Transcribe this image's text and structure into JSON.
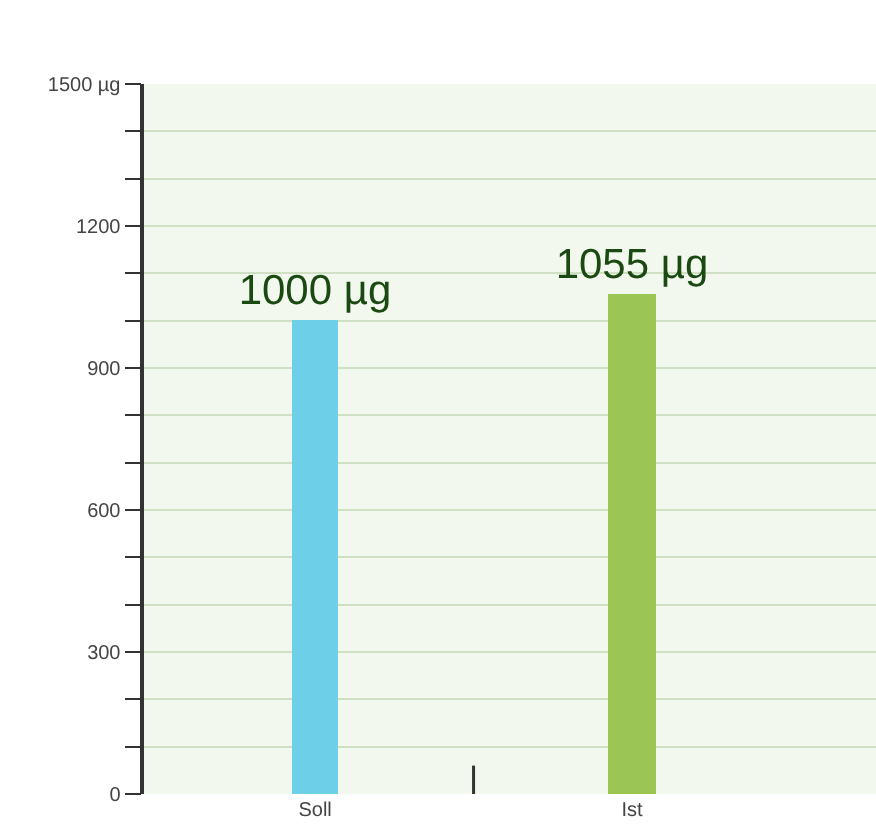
{
  "chart_data": {
    "type": "bar",
    "categories": [
      "Soll",
      "Ist"
    ],
    "values": [
      1000,
      1055
    ],
    "colors": [
      "#6ecfe8",
      "#9bc653"
    ],
    "value_labels": [
      "1000 µg",
      "1055 µg"
    ],
    "ylim": [
      0,
      1500
    ],
    "yticks": [
      0,
      {
        "value": 100,
        "label": null
      },
      {
        "value": 200,
        "label": null
      },
      300,
      {
        "value": 400,
        "label": null
      },
      {
        "value": 500,
        "label": null
      },
      600,
      {
        "value": 700,
        "label": null
      },
      {
        "value": 800,
        "label": null
      },
      900,
      {
        "value": 1000,
        "label": null
      },
      {
        "value": 1100,
        "label": null
      },
      1200,
      {
        "value": 1300,
        "label": null
      },
      {
        "value": 1400,
        "label": null
      },
      {
        "value": 1500,
        "label": "1500 µg"
      }
    ],
    "grid": "y"
  }
}
